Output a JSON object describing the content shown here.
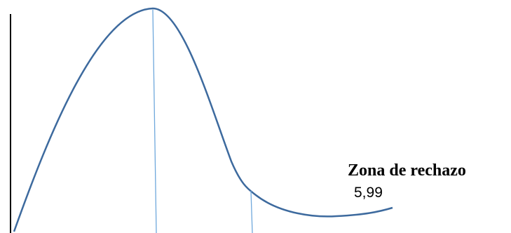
{
  "labels": {
    "rejection_zone": "Zona de rechazo",
    "critical_value": "5,99"
  },
  "colors": {
    "curve": "#3d6a9e",
    "marker_line": "#6fa8dc",
    "axis": "#000000"
  }
}
